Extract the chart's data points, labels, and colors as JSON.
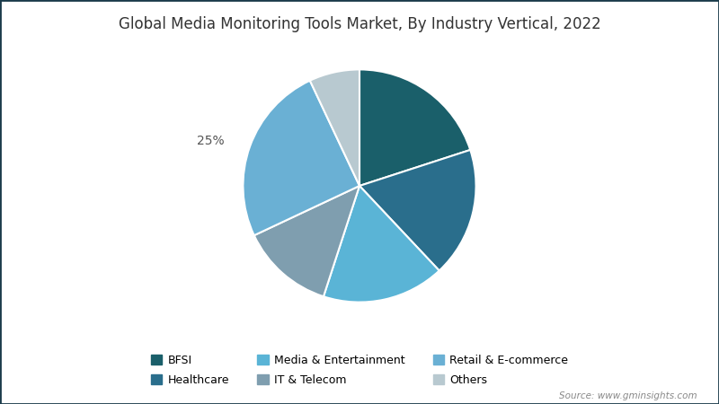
{
  "title": "Global Media Monitoring Tools Market, By Industry Vertical, 2022",
  "slices": [
    {
      "label": "BFSI",
      "value": 20,
      "color": "#1a5f6a"
    },
    {
      "label": "Healthcare",
      "value": 18,
      "color": "#2a6e8c"
    },
    {
      "label": "Media & Entertainment",
      "value": 17,
      "color": "#5ab4d6"
    },
    {
      "label": "IT & Telecom",
      "value": 13,
      "color": "#7f9eaf"
    },
    {
      "label": "Retail & E-commerce",
      "value": 25,
      "color": "#6ab0d4"
    },
    {
      "label": "Others",
      "value": 7,
      "color": "#b8c9d0"
    }
  ],
  "label_text": "25%",
  "label_slice": "Retail & E-commerce",
  "background_color": "#ffffff",
  "title_color": "#333333",
  "title_fontsize": 12,
  "source_text": "Source: www.gminsights.com",
  "legend_fontsize": 9,
  "startangle": 90,
  "border_color": "#1a3a4a",
  "border_width": 2.0,
  "legend_order": [
    "BFSI",
    "Healthcare",
    "Media & Entertainment",
    "IT & Telecom",
    "Retail & E-commerce",
    "Others"
  ]
}
